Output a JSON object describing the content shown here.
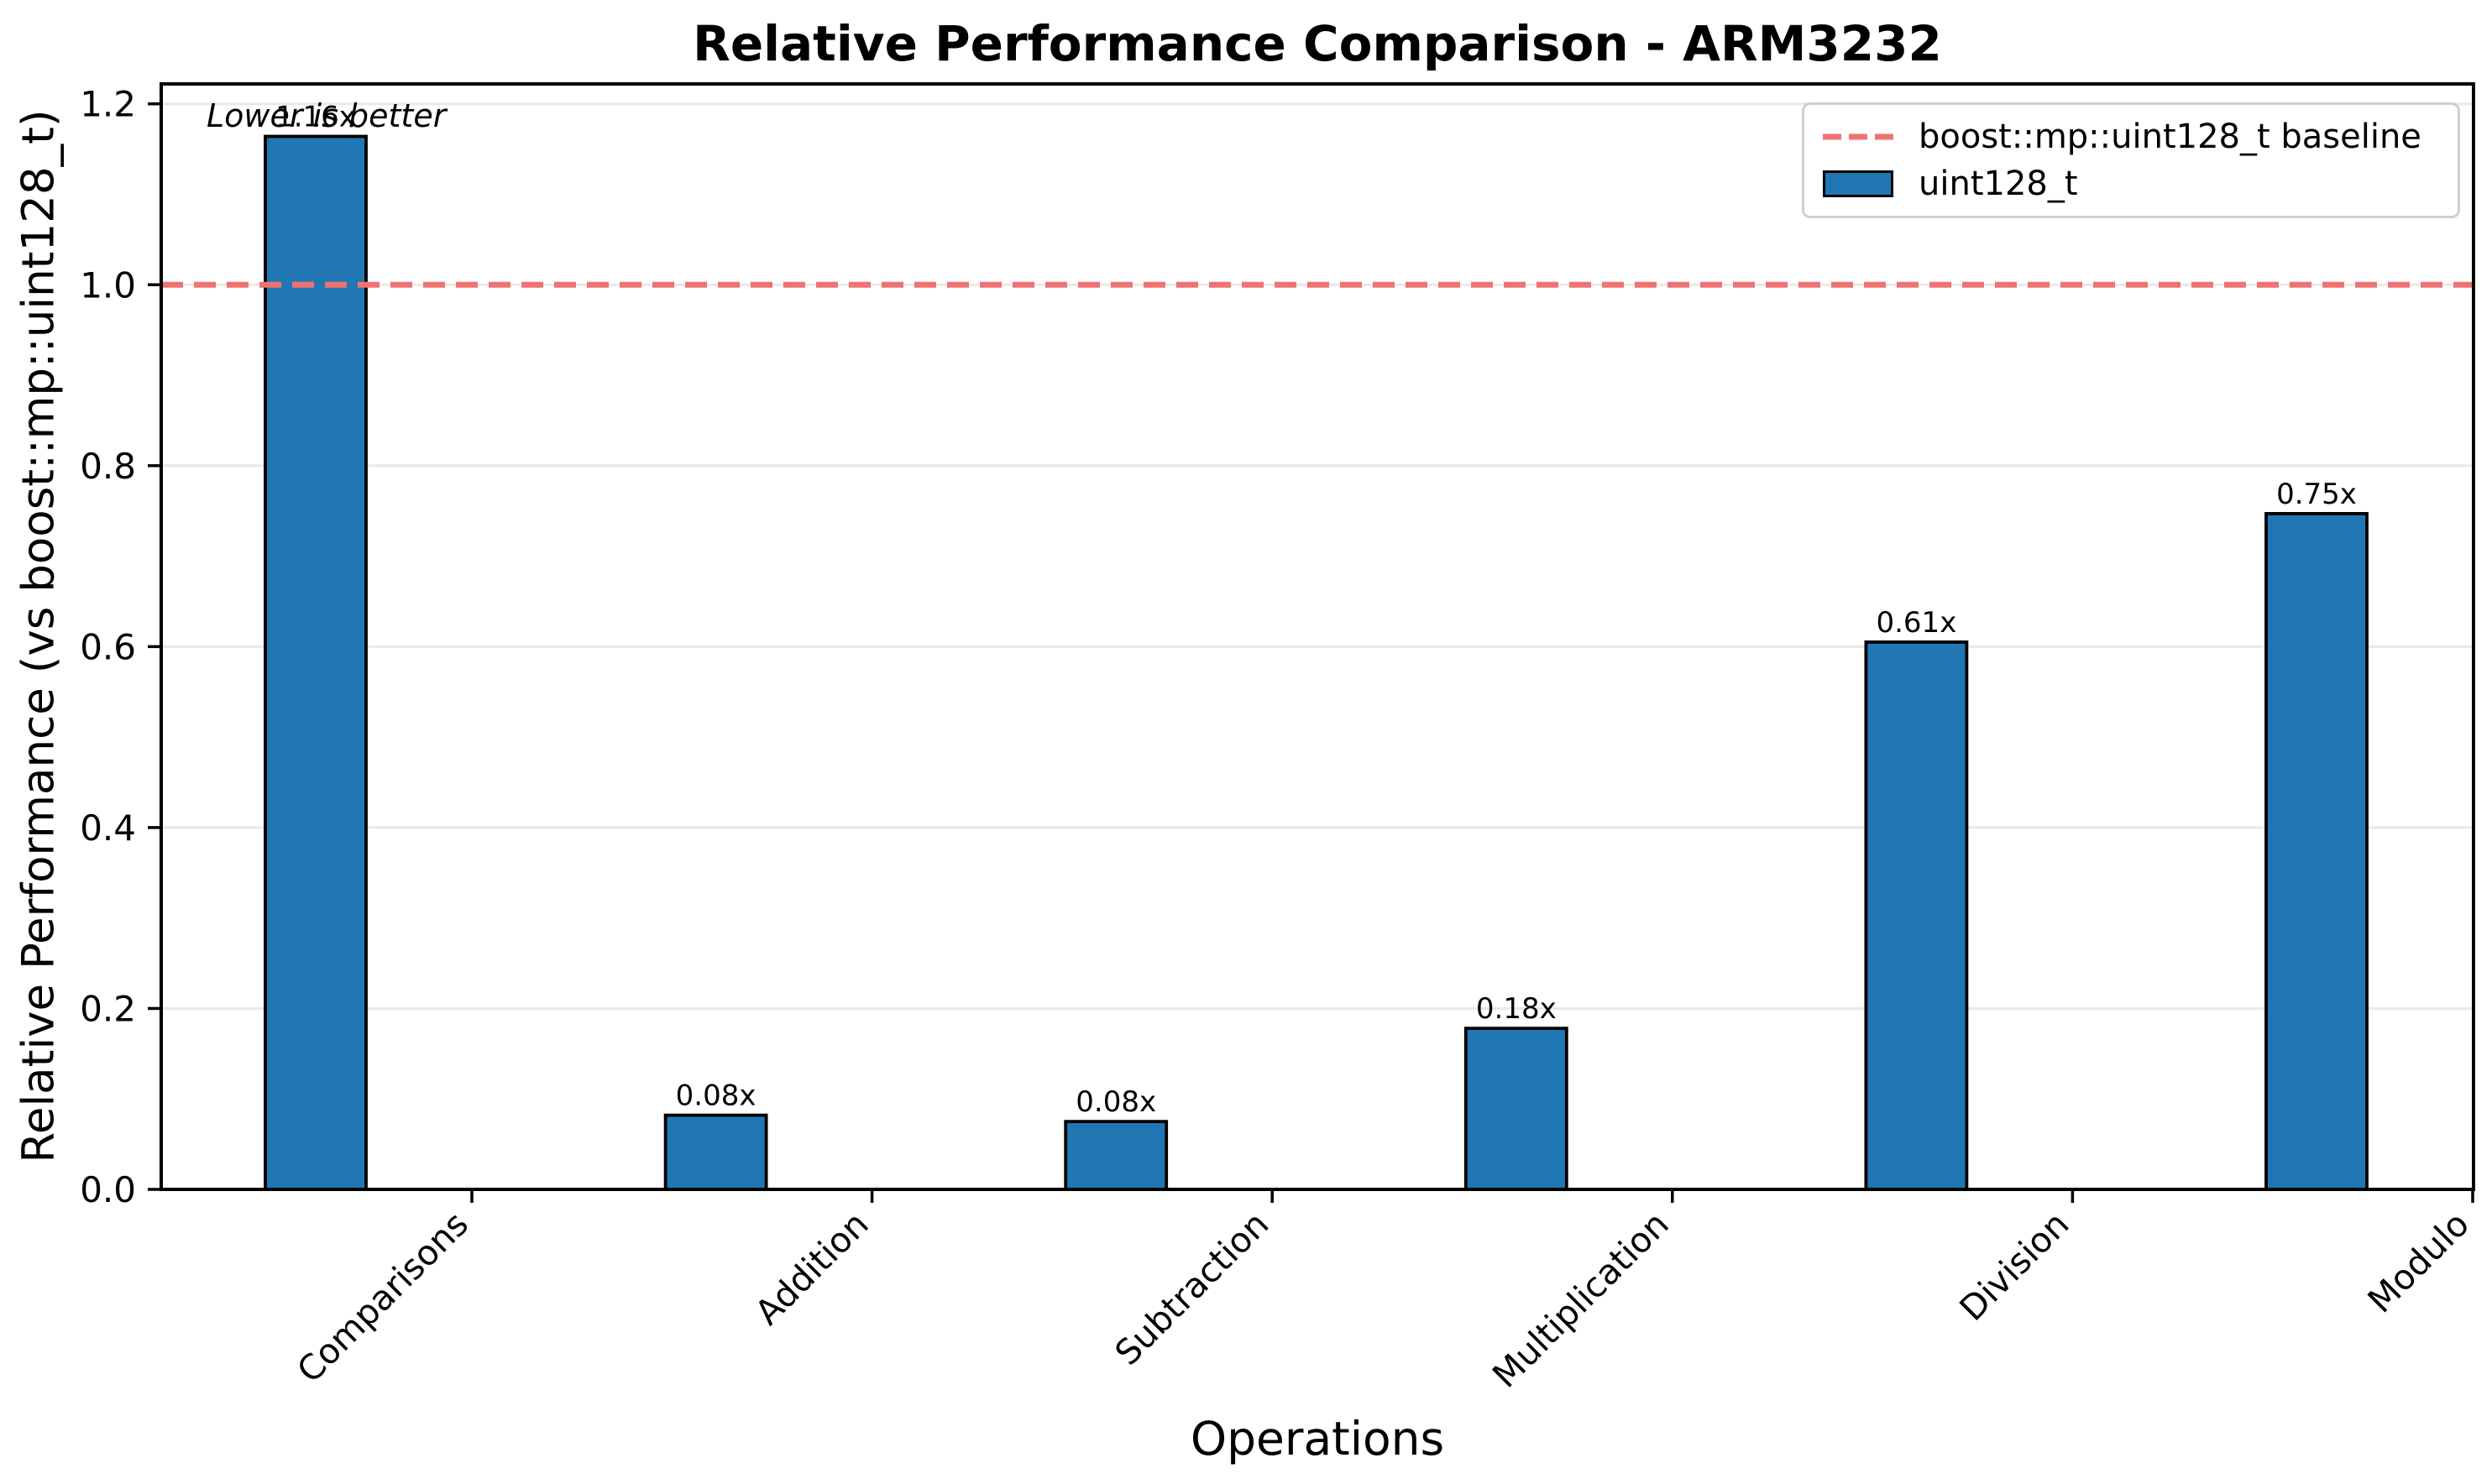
{
  "header": {
    "title": "Relative Performance Comparison - ARM3232"
  },
  "axes": {
    "xlabel": "Operations",
    "ylabel": "Relative Performance (vs boost::mp::uint128_t)"
  },
  "annotation": {
    "text": "Lower is better"
  },
  "legend": {
    "position": "upper-right",
    "items": [
      {
        "kind": "dashed-line",
        "label": "boost::mp::uint128_t baseline",
        "color": "#ef7373"
      },
      {
        "kind": "swatch",
        "label": "uint128_t",
        "color": "#2177b3"
      }
    ]
  },
  "chart_data": {
    "type": "bar",
    "title": "Relative Performance Comparison - ARM3232",
    "xlabel": "Operations",
    "ylabel": "Relative Performance (vs boost::mp::uint128_t)",
    "categories": [
      "Comparisons",
      "Addition",
      "Subtraction",
      "Multiplication",
      "Division",
      "Modulo"
    ],
    "series": [
      {
        "name": "uint128_t",
        "values": [
          1.16,
          0.08,
          0.08,
          0.18,
          0.61,
          0.75
        ]
      }
    ],
    "values_rendered": [
      1.164,
      0.082,
      0.075,
      0.178,
      0.605,
      0.747
    ],
    "bar_labels": [
      "1.16x",
      "0.08x",
      "0.08x",
      "0.18x",
      "0.61x",
      "0.75x"
    ],
    "baseline": {
      "value": 1.0,
      "label": "boost::mp::uint128_t baseline",
      "style": "dashed"
    },
    "yticks": [
      "0.0",
      "0.2",
      "0.4",
      "0.6",
      "0.8",
      "1.0",
      "1.2"
    ],
    "ytick_values": [
      0,
      0.2,
      0.4,
      0.6,
      0.8,
      1.0,
      1.2
    ],
    "ylim": [
      0,
      1.222
    ],
    "grid": "horizontal-light",
    "legend_position": "upper-right",
    "annotation": "Lower is better",
    "colors": {
      "bar_fill": "#2177b3",
      "bar_edge": "#000000",
      "baseline": "#ef7373",
      "grid": "#e8e8e8",
      "spine": "#000000"
    }
  }
}
